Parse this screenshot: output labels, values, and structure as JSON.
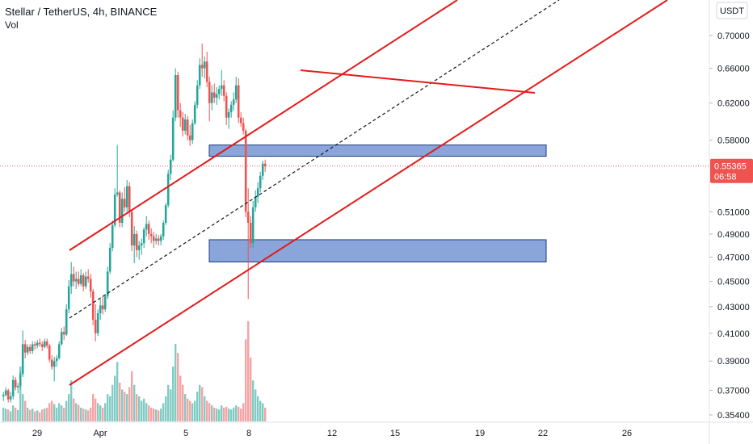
{
  "header": {
    "title": "Stellar / TetherUS, 4h, BINANCE",
    "volume_label": "Vol"
  },
  "currency_badge": "USDT",
  "price_axis": {
    "ticks": [
      "0.70000",
      "0.66000",
      "0.62000",
      "0.58000",
      "0.55365",
      "0.51000",
      "0.49000",
      "0.47000",
      "0.45000",
      "0.43000",
      "0.41000",
      "0.39000",
      "0.37000",
      "0.35400"
    ]
  },
  "time_axis": {
    "ticks": [
      "29",
      "Apr",
      "5",
      "8",
      "12",
      "15",
      "19",
      "22",
      "26"
    ]
  },
  "last_price": {
    "value": "0.55365",
    "countdown": "06:58"
  },
  "colors": {
    "up": "#26a69a",
    "down": "#ef5350",
    "vol_up": "#80cbc4",
    "vol_down": "#f5a3a3",
    "zone_fill": "#4a74c4",
    "zone_border": "#1e3a7a",
    "trendline": "#e31b1b",
    "midline": "#131722",
    "price_badge": "#ef5350"
  },
  "chart_data": {
    "type": "candlestick",
    "symbol": "Stellar / TetherUS",
    "interval": "4h",
    "exchange": "BINANCE",
    "y_scale": "log",
    "x_ticks": [
      "29",
      "Apr",
      "5",
      "8",
      "12",
      "15",
      "19",
      "22",
      "26"
    ],
    "y_ticks": [
      0.7,
      0.66,
      0.62,
      0.58,
      0.51,
      0.49,
      0.47,
      0.45,
      0.43,
      0.41,
      0.39,
      0.37,
      0.354
    ],
    "candles": [
      [
        0.366,
        0.369,
        0.363,
        0.367,
        30
      ],
      [
        0.367,
        0.372,
        0.366,
        0.37,
        28
      ],
      [
        0.37,
        0.371,
        0.362,
        0.364,
        26
      ],
      [
        0.364,
        0.369,
        0.362,
        0.366,
        22
      ],
      [
        0.366,
        0.38,
        0.364,
        0.377,
        35
      ],
      [
        0.377,
        0.379,
        0.37,
        0.372,
        30
      ],
      [
        0.372,
        0.375,
        0.368,
        0.373,
        25
      ],
      [
        0.373,
        0.383,
        0.371,
        0.381,
        120
      ],
      [
        0.381,
        0.412,
        0.379,
        0.402,
        60
      ],
      [
        0.402,
        0.405,
        0.392,
        0.396,
        45
      ],
      [
        0.396,
        0.402,
        0.394,
        0.4,
        30
      ],
      [
        0.4,
        0.402,
        0.395,
        0.397,
        25
      ],
      [
        0.397,
        0.404,
        0.395,
        0.402,
        28
      ],
      [
        0.402,
        0.404,
        0.398,
        0.401,
        22
      ],
      [
        0.401,
        0.405,
        0.399,
        0.403,
        24
      ],
      [
        0.403,
        0.406,
        0.4,
        0.402,
        20
      ],
      [
        0.402,
        0.404,
        0.397,
        0.4,
        26
      ],
      [
        0.4,
        0.406,
        0.399,
        0.404,
        28
      ],
      [
        0.404,
        0.406,
        0.399,
        0.401,
        30
      ],
      [
        0.401,
        0.402,
        0.389,
        0.391,
        40
      ],
      [
        0.391,
        0.394,
        0.384,
        0.386,
        45
      ],
      [
        0.386,
        0.393,
        0.376,
        0.39,
        38
      ],
      [
        0.39,
        0.394,
        0.386,
        0.392,
        30
      ],
      [
        0.392,
        0.404,
        0.391,
        0.402,
        40
      ],
      [
        0.402,
        0.414,
        0.401,
        0.411,
        35
      ],
      [
        0.411,
        0.415,
        0.405,
        0.409,
        30
      ],
      [
        0.409,
        0.432,
        0.408,
        0.428,
        45
      ],
      [
        0.428,
        0.451,
        0.425,
        0.446,
        60
      ],
      [
        0.446,
        0.466,
        0.44,
        0.456,
        90
      ],
      [
        0.456,
        0.462,
        0.446,
        0.45,
        50
      ],
      [
        0.45,
        0.458,
        0.444,
        0.452,
        40
      ],
      [
        0.452,
        0.458,
        0.446,
        0.448,
        36
      ],
      [
        0.448,
        0.46,
        0.446,
        0.455,
        30
      ],
      [
        0.455,
        0.457,
        0.442,
        0.446,
        28
      ],
      [
        0.446,
        0.458,
        0.444,
        0.454,
        26
      ],
      [
        0.454,
        0.46,
        0.449,
        0.452,
        24
      ],
      [
        0.452,
        0.456,
        0.437,
        0.442,
        30
      ],
      [
        0.442,
        0.444,
        0.416,
        0.42,
        60
      ],
      [
        0.42,
        0.432,
        0.404,
        0.41,
        50
      ],
      [
        0.41,
        0.428,
        0.408,
        0.425,
        40
      ],
      [
        0.425,
        0.436,
        0.42,
        0.431,
        35
      ],
      [
        0.431,
        0.438,
        0.424,
        0.428,
        30
      ],
      [
        0.428,
        0.44,
        0.426,
        0.438,
        40
      ],
      [
        0.438,
        0.462,
        0.436,
        0.458,
        60
      ],
      [
        0.458,
        0.482,
        0.456,
        0.478,
        55
      ],
      [
        0.478,
        0.502,
        0.475,
        0.498,
        80
      ],
      [
        0.498,
        0.532,
        0.496,
        0.526,
        100
      ],
      [
        0.526,
        0.575,
        0.524,
        0.528,
        130
      ],
      [
        0.528,
        0.53,
        0.496,
        0.5,
        85
      ],
      [
        0.5,
        0.528,
        0.496,
        0.522,
        70
      ],
      [
        0.522,
        0.533,
        0.51,
        0.514,
        65
      ],
      [
        0.514,
        0.54,
        0.51,
        0.534,
        60
      ],
      [
        0.534,
        0.538,
        0.505,
        0.51,
        75
      ],
      [
        0.51,
        0.511,
        0.475,
        0.48,
        110
      ],
      [
        0.48,
        0.497,
        0.465,
        0.49,
        80
      ],
      [
        0.49,
        0.493,
        0.47,
        0.476,
        60
      ],
      [
        0.476,
        0.484,
        0.468,
        0.48,
        55
      ],
      [
        0.48,
        0.486,
        0.472,
        0.482,
        45
      ],
      [
        0.482,
        0.496,
        0.478,
        0.494,
        50
      ],
      [
        0.494,
        0.506,
        0.488,
        0.499,
        40
      ],
      [
        0.499,
        0.502,
        0.485,
        0.49,
        35
      ],
      [
        0.49,
        0.495,
        0.482,
        0.488,
        30
      ],
      [
        0.488,
        0.492,
        0.478,
        0.484,
        28
      ],
      [
        0.484,
        0.49,
        0.481,
        0.486,
        26
      ],
      [
        0.486,
        0.489,
        0.48,
        0.484,
        24
      ],
      [
        0.484,
        0.49,
        0.48,
        0.488,
        28
      ],
      [
        0.488,
        0.502,
        0.485,
        0.5,
        40
      ],
      [
        0.5,
        0.518,
        0.498,
        0.516,
        55
      ],
      [
        0.516,
        0.55,
        0.514,
        0.546,
        80
      ],
      [
        0.546,
        0.565,
        0.54,
        0.56,
        70
      ],
      [
        0.56,
        0.612,
        0.558,
        0.604,
        120
      ],
      [
        0.604,
        0.66,
        0.6,
        0.652,
        170
      ],
      [
        0.652,
        0.656,
        0.604,
        0.612,
        150
      ],
      [
        0.612,
        0.62,
        0.594,
        0.604,
        100
      ],
      [
        0.604,
        0.61,
        0.584,
        0.59,
        80
      ],
      [
        0.59,
        0.608,
        0.586,
        0.602,
        60
      ],
      [
        0.602,
        0.606,
        0.58,
        0.585,
        50
      ],
      [
        0.585,
        0.596,
        0.574,
        0.58,
        45
      ],
      [
        0.58,
        0.602,
        0.576,
        0.598,
        40
      ],
      [
        0.598,
        0.622,
        0.596,
        0.618,
        45
      ],
      [
        0.618,
        0.646,
        0.614,
        0.64,
        65
      ],
      [
        0.64,
        0.672,
        0.636,
        0.664,
        80
      ],
      [
        0.664,
        0.69,
        0.65,
        0.66,
        75
      ],
      [
        0.66,
        0.674,
        0.648,
        0.668,
        55
      ],
      [
        0.668,
        0.68,
        0.638,
        0.644,
        45
      ],
      [
        0.644,
        0.65,
        0.6,
        0.62,
        40
      ],
      [
        0.62,
        0.64,
        0.612,
        0.632,
        35
      ],
      [
        0.632,
        0.642,
        0.62,
        0.626,
        30
      ],
      [
        0.626,
        0.638,
        0.618,
        0.63,
        28
      ],
      [
        0.63,
        0.64,
        0.624,
        0.636,
        26
      ],
      [
        0.636,
        0.658,
        0.628,
        0.64,
        35
      ],
      [
        0.64,
        0.646,
        0.622,
        0.628,
        30
      ],
      [
        0.628,
        0.632,
        0.596,
        0.604,
        32
      ],
      [
        0.604,
        0.614,
        0.592,
        0.61,
        28
      ],
      [
        0.61,
        0.622,
        0.604,
        0.618,
        26
      ],
      [
        0.618,
        0.632,
        0.612,
        0.624,
        30
      ],
      [
        0.624,
        0.65,
        0.62,
        0.64,
        35
      ],
      [
        0.64,
        0.648,
        0.598,
        0.604,
        32
      ],
      [
        0.604,
        0.61,
        0.594,
        0.598,
        28
      ],
      [
        0.598,
        0.604,
        0.586,
        0.59,
        40
      ],
      [
        0.59,
        0.592,
        0.505,
        0.51,
        180
      ],
      [
        0.51,
        0.532,
        0.436,
        0.5,
        220
      ],
      [
        0.5,
        0.506,
        0.478,
        0.482,
        140
      ],
      [
        0.482,
        0.52,
        0.478,
        0.514,
        90
      ],
      [
        0.514,
        0.53,
        0.51,
        0.524,
        70
      ],
      [
        0.524,
        0.538,
        0.518,
        0.532,
        55
      ],
      [
        0.532,
        0.548,
        0.528,
        0.544,
        45
      ],
      [
        0.544,
        0.559,
        0.54,
        0.556,
        40
      ],
      [
        0.556,
        0.56,
        0.548,
        0.5537,
        30
      ]
    ],
    "support_resistance_zones": [
      [
        0.566,
        0.575
      ],
      [
        0.466,
        0.485
      ]
    ],
    "annotations": [
      "upper channel line",
      "lower channel line",
      "dashed channel midline",
      "descending resistance line"
    ]
  }
}
